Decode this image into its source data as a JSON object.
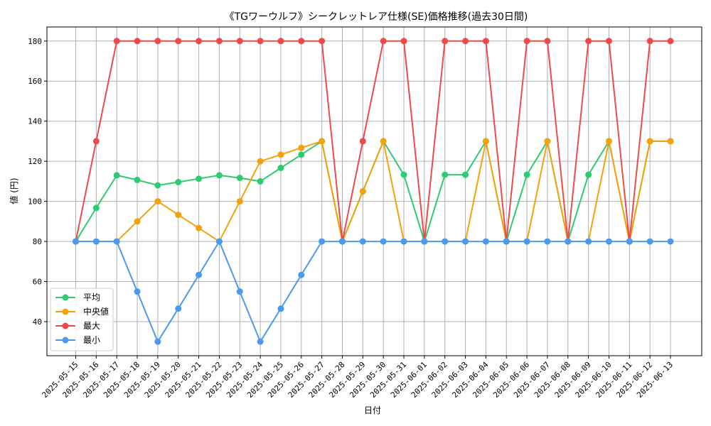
{
  "chart_data": {
    "type": "line",
    "title": "《TGワーウルフ》シークレットレア仕様(SE)価格推移(過去30日間)",
    "xlabel": "日付",
    "ylabel": "値 (円)",
    "ylim": [
      23,
      187
    ],
    "yticks": [
      40,
      60,
      80,
      100,
      120,
      140,
      160,
      180
    ],
    "grid": true,
    "legend_position": "lower-left",
    "categories": [
      "2025-05-15",
      "2025-05-16",
      "2025-05-17",
      "2025-05-18",
      "2025-05-19",
      "2025-05-20",
      "2025-05-21",
      "2025-05-22",
      "2025-05-23",
      "2025-05-24",
      "2025-05-25",
      "2025-05-26",
      "2025-05-27",
      "2025-05-28",
      "2025-05-29",
      "2025-05-30",
      "2025-05-31",
      "2025-06-01",
      "2025-06-02",
      "2025-06-03",
      "2025-06-04",
      "2025-06-05",
      "2025-06-06",
      "2025-06-07",
      "2025-06-08",
      "2025-06-09",
      "2025-06-10",
      "2025-06-11",
      "2025-06-12",
      "2025-06-13"
    ],
    "series": [
      {
        "name": "平均",
        "color": "#2ecc71",
        "values": [
          80,
          96.7,
          113,
          110.7,
          108,
          109.6,
          111.3,
          113,
          111.7,
          110,
          116.7,
          123.3,
          130,
          80,
          105,
          130,
          113.3,
          80,
          113.3,
          113.3,
          130,
          80,
          113.3,
          130,
          80,
          113.3,
          130,
          80,
          130,
          130
        ]
      },
      {
        "name": "中央値",
        "color": "#f5a20a",
        "values": [
          80,
          80,
          80,
          90,
          100,
          93.3,
          86.7,
          80,
          100,
          120,
          123.3,
          126.7,
          130,
          80,
          105,
          130,
          80,
          80,
          80,
          80,
          130,
          80,
          80,
          130,
          80,
          80,
          130,
          80,
          130,
          130
        ]
      },
      {
        "name": "最大",
        "color": "#ef4a4a",
        "values": [
          80,
          130,
          180,
          180,
          180,
          180,
          180,
          180,
          180,
          180,
          180,
          180,
          180,
          80,
          130,
          180,
          180,
          80,
          180,
          180,
          180,
          80,
          180,
          180,
          80,
          180,
          180,
          80,
          180,
          180
        ]
      },
      {
        "name": "最小",
        "color": "#4a9af0",
        "values": [
          80,
          80,
          80,
          55,
          30,
          46.5,
          63.3,
          80,
          55,
          30,
          46.5,
          63.3,
          80,
          80,
          80,
          80,
          80,
          80,
          80,
          80,
          80,
          80,
          80,
          80,
          80,
          80,
          80,
          80,
          80,
          80
        ]
      }
    ]
  }
}
